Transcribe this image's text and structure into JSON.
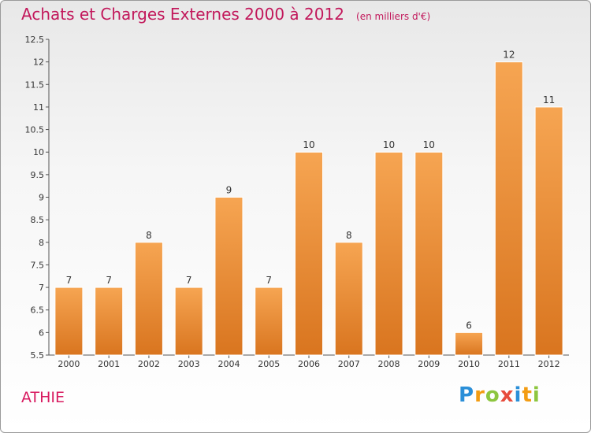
{
  "title": "Achats et Charges Externes 2000 à 2012",
  "unit": "(en milliers d'€)",
  "commune": "ATHIE",
  "logo": {
    "letters": [
      "P",
      "r",
      "o",
      "x",
      "i",
      "t",
      "i"
    ],
    "colors": [
      "#2b8fd8",
      "#f39c12",
      "#8dc63f",
      "#e74c3c",
      "#2b8fd8",
      "#f39c12",
      "#8dc63f"
    ]
  },
  "colors": {
    "bar_top": "#f6a552",
    "bar_bottom": "#d9751f",
    "title": "#c2185b",
    "commune": "#d81b60"
  },
  "chart_data": {
    "type": "bar",
    "title": "Achats et Charges Externes 2000 à 2012",
    "subtitle": "(en milliers d'€)",
    "categories": [
      "2000",
      "2001",
      "2002",
      "2003",
      "2004",
      "2005",
      "2006",
      "2007",
      "2008",
      "2009",
      "2010",
      "2011",
      "2012"
    ],
    "values": [
      7,
      7,
      8,
      7,
      9,
      7,
      10,
      8,
      10,
      10,
      6,
      12,
      11
    ],
    "ylim": [
      5.5,
      12.5
    ],
    "yticks": [
      "5.5",
      "6",
      "6.5",
      "7",
      "7.5",
      "8",
      "8.5",
      "9",
      "9.5",
      "10",
      "10.5",
      "11",
      "11.5",
      "12",
      "12.5"
    ],
    "grid": false,
    "legend": "none"
  }
}
